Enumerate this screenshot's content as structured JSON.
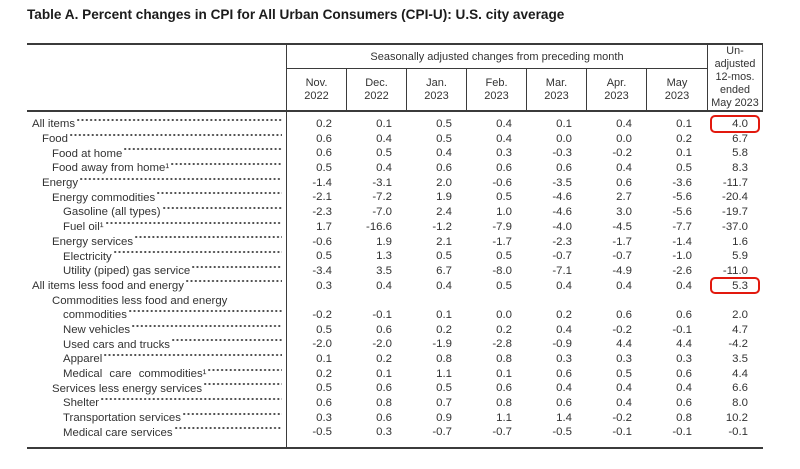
{
  "title": "Table A. Percent changes in CPI for All Urban Consumers (CPI-U): U.S. city average",
  "colors": {
    "highlight_box": "#e2190e",
    "border": "#3b3b3b",
    "text": "#333333"
  },
  "table": {
    "col_group_header": "Seasonally adjusted changes from preceding month",
    "unadjusted_header_lines": [
      "Un-",
      "adjusted",
      "12-mos.",
      "ended",
      "May 2023"
    ],
    "month_columns": [
      {
        "line1": "Nov.",
        "line2": "2022"
      },
      {
        "line1": "Dec.",
        "line2": "2022"
      },
      {
        "line1": "Jan.",
        "line2": "2023"
      },
      {
        "line1": "Feb.",
        "line2": "2023"
      },
      {
        "line1": "Mar.",
        "line2": "2023"
      },
      {
        "line1": "Apr.",
        "line2": "2023"
      },
      {
        "line1": "May",
        "line2": "2023"
      }
    ],
    "rows": [
      {
        "label": "All items",
        "indent": 0,
        "values": [
          "0.2",
          "0.1",
          "0.5",
          "0.4",
          "0.1",
          "0.4",
          "0.1"
        ],
        "unadjusted": "4.0",
        "highlight": true
      },
      {
        "label": "Food",
        "indent": 1,
        "values": [
          "0.6",
          "0.4",
          "0.5",
          "0.4",
          "0.0",
          "0.0",
          "0.2"
        ],
        "unadjusted": "6.7"
      },
      {
        "label": "Food at home",
        "indent": 2,
        "values": [
          "0.6",
          "0.5",
          "0.4",
          "0.3",
          "-0.3",
          "-0.2",
          "0.1"
        ],
        "unadjusted": "5.8"
      },
      {
        "label": "Food away from home¹",
        "indent": 2,
        "values": [
          "0.5",
          "0.4",
          "0.6",
          "0.6",
          "0.6",
          "0.4",
          "0.5"
        ],
        "unadjusted": "8.3"
      },
      {
        "label": "Energy",
        "indent": 1,
        "values": [
          "-1.4",
          "-3.1",
          "2.0",
          "-0.6",
          "-3.5",
          "0.6",
          "-3.6"
        ],
        "unadjusted": "-11.7"
      },
      {
        "label": "Energy commodities",
        "indent": 2,
        "values": [
          "-2.1",
          "-7.2",
          "1.9",
          "0.5",
          "-4.6",
          "2.7",
          "-5.6"
        ],
        "unadjusted": "-20.4"
      },
      {
        "label": "Gasoline (all types)",
        "indent": 3,
        "values": [
          "-2.3",
          "-7.0",
          "2.4",
          "1.0",
          "-4.6",
          "3.0",
          "-5.6"
        ],
        "unadjusted": "-19.7"
      },
      {
        "label": "Fuel oil¹",
        "indent": 3,
        "values": [
          "1.7",
          "-16.6",
          "-1.2",
          "-7.9",
          "-4.0",
          "-4.5",
          "-7.7"
        ],
        "unadjusted": "-37.0"
      },
      {
        "label": "Energy services",
        "indent": 2,
        "values": [
          "-0.6",
          "1.9",
          "2.1",
          "-1.7",
          "-2.3",
          "-1.7",
          "-1.4"
        ],
        "unadjusted": "1.6"
      },
      {
        "label": "Electricity",
        "indent": 3,
        "values": [
          "0.5",
          "1.3",
          "0.5",
          "0.5",
          "-0.7",
          "-0.7",
          "-1.0"
        ],
        "unadjusted": "5.9"
      },
      {
        "label": "Utility (piped) gas service",
        "indent": 3,
        "values": [
          "-3.4",
          "3.5",
          "6.7",
          "-8.0",
          "-7.1",
          "-4.9",
          "-2.6"
        ],
        "unadjusted": "-11.0"
      },
      {
        "label": "All items less food and energy",
        "indent": 0,
        "values": [
          "0.3",
          "0.4",
          "0.4",
          "0.5",
          "0.4",
          "0.4",
          "0.4"
        ],
        "unadjusted": "5.3",
        "highlight": true
      },
      {
        "label": "Commodities less food and energy commodities",
        "two_line": true,
        "label_line1": "Commodities less food and energy",
        "label_line2": "commodities",
        "indent": 2,
        "values": [
          "-0.2",
          "-0.1",
          "0.1",
          "0.0",
          "0.2",
          "0.6",
          "0.6"
        ],
        "unadjusted": "2.0"
      },
      {
        "label": "New vehicles",
        "indent": 3,
        "values": [
          "0.5",
          "0.6",
          "0.2",
          "0.2",
          "0.4",
          "-0.2",
          "-0.1"
        ],
        "unadjusted": "4.7"
      },
      {
        "label": "Used cars and trucks",
        "indent": 3,
        "values": [
          "-2.0",
          "-2.0",
          "-1.9",
          "-2.8",
          "-0.9",
          "4.4",
          "4.4"
        ],
        "unadjusted": "-4.2"
      },
      {
        "label": "Apparel",
        "indent": 3,
        "values": [
          "0.1",
          "0.2",
          "0.8",
          "0.8",
          "0.3",
          "0.3",
          "0.3"
        ],
        "unadjusted": "3.5"
      },
      {
        "label": "Medical care commodities¹",
        "indent": 3,
        "spread": true,
        "values": [
          "0.2",
          "0.1",
          "1.1",
          "0.1",
          "0.6",
          "0.5",
          "0.6"
        ],
        "unadjusted": "4.4"
      },
      {
        "label": "Services less energy services",
        "indent": 2,
        "values": [
          "0.5",
          "0.6",
          "0.5",
          "0.6",
          "0.4",
          "0.4",
          "0.4"
        ],
        "unadjusted": "6.6"
      },
      {
        "label": "Shelter",
        "indent": 3,
        "values": [
          "0.6",
          "0.8",
          "0.7",
          "0.8",
          "0.6",
          "0.4",
          "0.6"
        ],
        "unadjusted": "8.0"
      },
      {
        "label": "Transportation services",
        "indent": 3,
        "values": [
          "0.3",
          "0.6",
          "0.9",
          "1.1",
          "1.4",
          "-0.2",
          "0.8"
        ],
        "unadjusted": "10.2"
      },
      {
        "label": "Medical care services",
        "indent": 3,
        "values": [
          "-0.5",
          "0.3",
          "-0.7",
          "-0.7",
          "-0.5",
          "-0.1",
          "-0.1"
        ],
        "unadjusted": "-0.1"
      }
    ]
  }
}
